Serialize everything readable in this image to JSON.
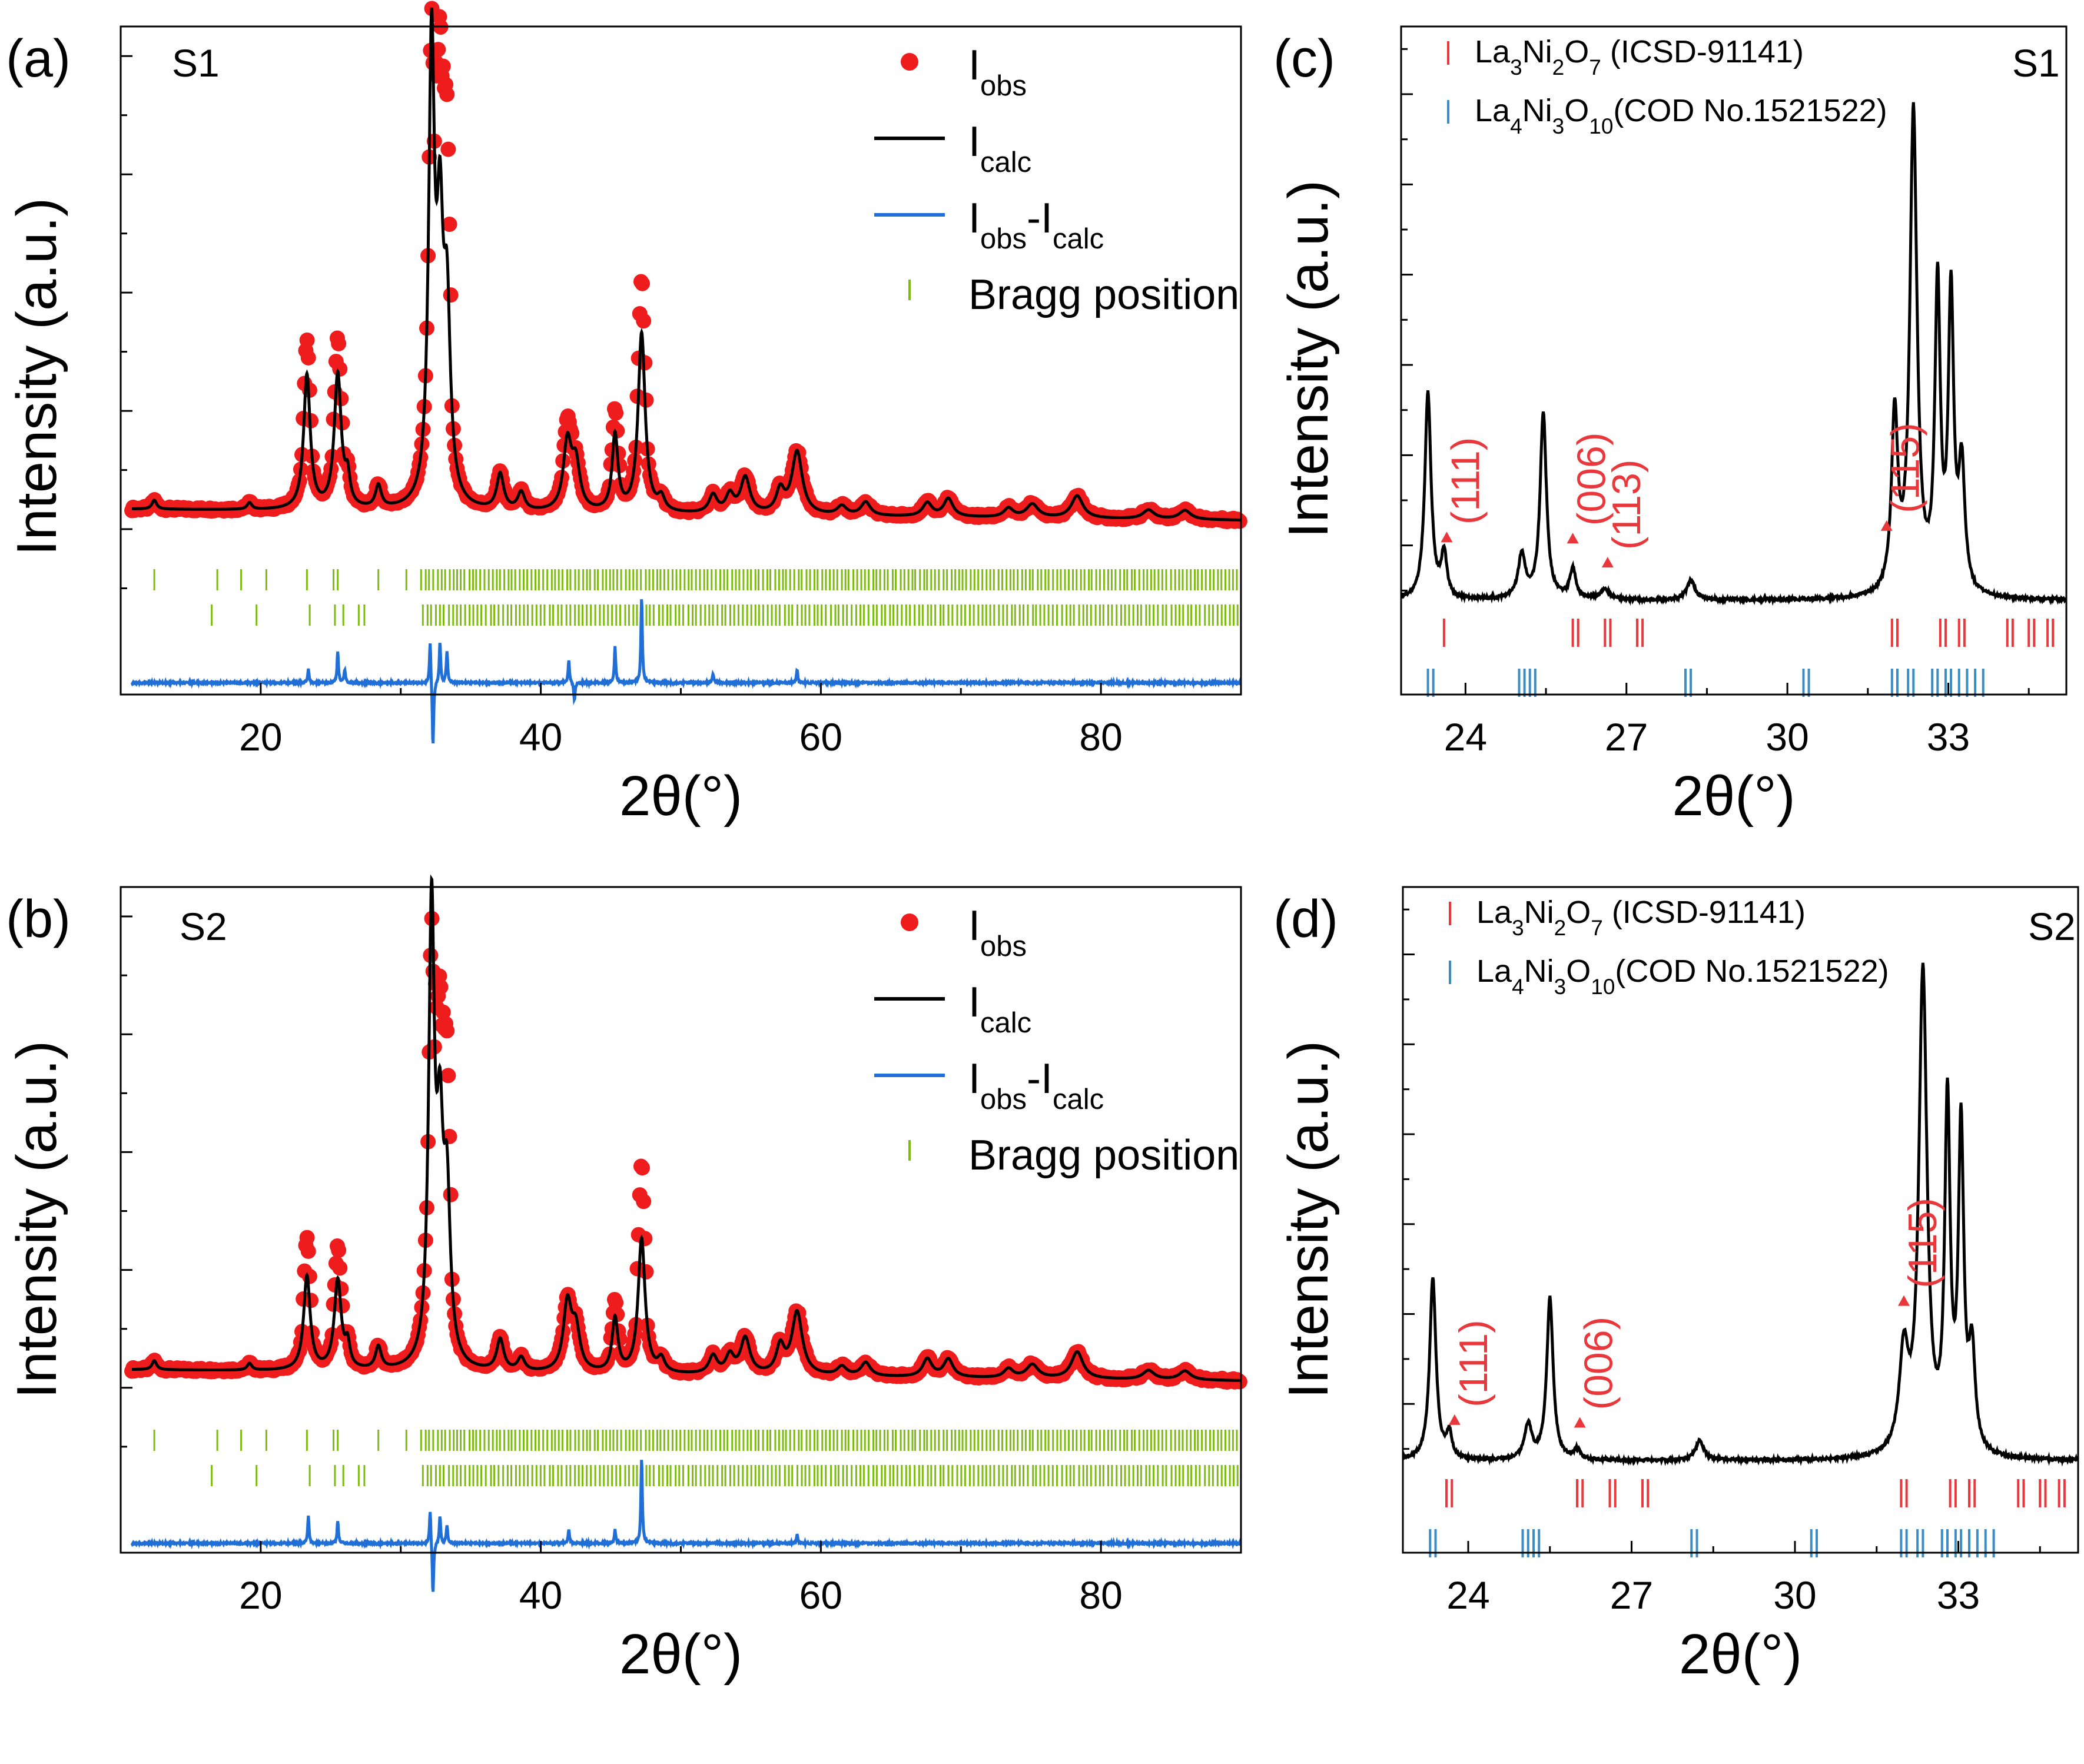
{
  "colors": {
    "observed": "#ee1c1c",
    "calculated": "#000000",
    "difference": "#1f6fd6",
    "bragg": "#7dbb12",
    "phase327": "#e8383c",
    "phase4310": "#3c8dc4",
    "axis": "#000000"
  },
  "chart_data": [
    {
      "id": "a",
      "panel_label": "(a)",
      "sample": "S1",
      "type": "scatter",
      "title": "",
      "xlabel": "2θ(°)",
      "ylabel": "Intensity (a.u.)",
      "xlim": [
        10,
        90
      ],
      "xticks": [
        20,
        40,
        60,
        80
      ],
      "xtick_labels": [
        "20",
        "40",
        "60",
        "80"
      ],
      "y_units": "a.u. (no numeric tick labels)",
      "legend": [
        {
          "label": "Iobs",
          "base": "I",
          "sub": "obs"
        },
        {
          "label": "Icalc",
          "base": "I",
          "sub": "calc"
        },
        {
          "label": "Iobs-Icalc",
          "base": "I",
          "sub": "obs",
          "mid": "-I",
          "sub2": "calc"
        },
        {
          "label": "Bragg position",
          "base": "Bragg position"
        }
      ],
      "legend_position": "top-right",
      "background": 0.1,
      "peaks": [
        [
          12.4,
          0.02,
          0.2
        ],
        [
          19.2,
          0.015,
          0.2
        ],
        [
          23.3,
          0.3,
          0.28
        ],
        [
          25.5,
          0.3,
          0.3
        ],
        [
          26.2,
          0.06,
          0.2
        ],
        [
          28.4,
          0.05,
          0.25
        ],
        [
          32.2,
          1.0,
          0.25
        ],
        [
          32.8,
          0.55,
          0.28
        ],
        [
          33.3,
          0.4,
          0.28
        ],
        [
          37.1,
          0.08,
          0.3
        ],
        [
          38.6,
          0.04,
          0.3
        ],
        [
          41.9,
          0.15,
          0.35
        ],
        [
          42.5,
          0.1,
          0.35
        ],
        [
          45.3,
          0.17,
          0.25
        ],
        [
          47.2,
          0.4,
          0.3
        ],
        [
          48.6,
          0.03,
          0.3
        ],
        [
          52.3,
          0.04,
          0.35
        ],
        [
          53.5,
          0.04,
          0.35
        ],
        [
          54.6,
          0.08,
          0.4
        ],
        [
          57.1,
          0.05,
          0.35
        ],
        [
          58.3,
          0.14,
          0.45
        ],
        [
          61.5,
          0.02,
          0.4
        ],
        [
          63.2,
          0.03,
          0.4
        ],
        [
          67.6,
          0.03,
          0.4
        ],
        [
          69.1,
          0.04,
          0.4
        ],
        [
          73.4,
          0.02,
          0.4
        ],
        [
          75.1,
          0.03,
          0.5
        ],
        [
          78.3,
          0.05,
          0.5
        ],
        [
          83.4,
          0.02,
          0.5
        ],
        [
          86.0,
          0.02,
          0.5
        ]
      ],
      "obs_scale": [
        [
          23.3,
          1.25
        ],
        [
          25.5,
          1.25
        ],
        [
          32.2,
          1.0
        ],
        [
          32.8,
          1.4
        ],
        [
          33.3,
          1.6
        ],
        [
          41.9,
          1.2
        ],
        [
          45.3,
          1.3
        ],
        [
          47.2,
          1.3
        ]
      ],
      "obs_step": 0.09,
      "bragg_rows": [
        {
          "ticks": [
            12.4,
            16.9,
            18.6,
            20.4,
            23.3,
            25.2,
            25.5,
            28.4,
            30.4
          ],
          "dense_from": 31.5,
          "dense_to": 90,
          "dense_step": 0.28
        },
        {
          "ticks": [
            16.5,
            19.7,
            23.5,
            25.3,
            25.9,
            27.0,
            27.4
          ],
          "dense_from": 31.6,
          "dense_to": 90,
          "dense_step": 0.3
        }
      ],
      "difference_spikes": [
        [
          23.4,
          0.03
        ],
        [
          25.5,
          0.07
        ],
        [
          26.0,
          0.03
        ],
        [
          32.1,
          0.1
        ],
        [
          32.3,
          -0.15
        ],
        [
          32.8,
          0.09
        ],
        [
          33.3,
          0.07
        ],
        [
          42.0,
          0.05
        ],
        [
          42.4,
          -0.04
        ],
        [
          45.3,
          0.08
        ],
        [
          47.2,
          0.19
        ],
        [
          52.3,
          0.02
        ],
        [
          58.3,
          0.03
        ]
      ]
    },
    {
      "id": "b",
      "panel_label": "(b)",
      "sample": "S2",
      "type": "scatter",
      "title": "",
      "xlabel": "2θ(°)",
      "ylabel": "Intensity (a.u.)",
      "xlim": [
        10,
        90
      ],
      "xticks": [
        20,
        40,
        60,
        80
      ],
      "xtick_labels": [
        "20",
        "40",
        "60",
        "80"
      ],
      "y_units": "a.u. (no numeric tick labels)",
      "legend": [
        {
          "label": "Iobs",
          "base": "I",
          "sub": "obs"
        },
        {
          "label": "Icalc",
          "base": "I",
          "sub": "calc"
        },
        {
          "label": "Iobs-Icalc",
          "base": "I",
          "sub": "obs",
          "mid": "-I",
          "sub2": "calc"
        },
        {
          "label": "Bragg position",
          "base": "Bragg position"
        }
      ],
      "legend_position": "top-right",
      "background": 0.1,
      "peaks": [
        [
          12.4,
          0.02,
          0.2
        ],
        [
          19.2,
          0.015,
          0.2
        ],
        [
          23.3,
          0.21,
          0.28
        ],
        [
          25.5,
          0.2,
          0.3
        ],
        [
          26.2,
          0.05,
          0.2
        ],
        [
          28.4,
          0.05,
          0.25
        ],
        [
          32.2,
          1.0,
          0.25
        ],
        [
          32.8,
          0.45,
          0.28
        ],
        [
          33.3,
          0.35,
          0.28
        ],
        [
          37.1,
          0.07,
          0.3
        ],
        [
          38.6,
          0.03,
          0.3
        ],
        [
          41.9,
          0.15,
          0.35
        ],
        [
          42.5,
          0.09,
          0.35
        ],
        [
          45.3,
          0.12,
          0.25
        ],
        [
          47.2,
          0.3,
          0.3
        ],
        [
          48.6,
          0.03,
          0.3
        ],
        [
          52.3,
          0.04,
          0.35
        ],
        [
          53.5,
          0.04,
          0.35
        ],
        [
          54.6,
          0.08,
          0.4
        ],
        [
          57.1,
          0.06,
          0.35
        ],
        [
          58.3,
          0.14,
          0.45
        ],
        [
          61.5,
          0.02,
          0.4
        ],
        [
          63.2,
          0.03,
          0.4
        ],
        [
          67.6,
          0.04,
          0.4
        ],
        [
          69.1,
          0.04,
          0.4
        ],
        [
          73.4,
          0.02,
          0.4
        ],
        [
          75.1,
          0.03,
          0.5
        ],
        [
          78.3,
          0.06,
          0.5
        ],
        [
          83.4,
          0.02,
          0.5
        ],
        [
          86.0,
          0.02,
          0.5
        ]
      ],
      "obs_scale": [
        [
          23.3,
          1.4
        ],
        [
          25.5,
          1.35
        ],
        [
          32.2,
          0.92
        ],
        [
          32.8,
          1.3
        ],
        [
          33.3,
          1.5
        ],
        [
          45.3,
          1.3
        ],
        [
          47.2,
          1.55
        ]
      ],
      "obs_step": 0.09,
      "bragg_rows": [
        {
          "ticks": [
            12.4,
            16.9,
            18.6,
            20.4,
            23.3,
            25.2,
            25.5,
            28.4,
            30.4
          ],
          "dense_from": 31.5,
          "dense_to": 90,
          "dense_step": 0.28
        },
        {
          "ticks": [
            16.5,
            19.7,
            23.5,
            25.3,
            25.9,
            27.0,
            27.4
          ],
          "dense_from": 31.6,
          "dense_to": 90,
          "dense_step": 0.3
        }
      ],
      "difference_spikes": [
        [
          23.4,
          0.06
        ],
        [
          25.5,
          0.05
        ],
        [
          32.1,
          0.08
        ],
        [
          32.3,
          -0.12
        ],
        [
          32.8,
          0.06
        ],
        [
          33.3,
          0.04
        ],
        [
          42.0,
          0.03
        ],
        [
          45.3,
          0.03
        ],
        [
          47.2,
          0.19
        ],
        [
          58.3,
          0.02
        ]
      ]
    },
    {
      "id": "c",
      "panel_label": "(c)",
      "sample": "S1",
      "type": "line",
      "title": "",
      "xlabel": "2θ(°)",
      "ylabel": "Intensity (a.u.)",
      "xlim": [
        22.8,
        35.2
      ],
      "xticks": [
        24,
        27,
        30,
        33
      ],
      "xtick_labels": [
        "24",
        "27",
        "30",
        "33"
      ],
      "y_units": "a.u. (no numeric tick labels)",
      "legend": [
        {
          "label": "La3Ni2O7 (ICSD-91141)",
          "parts": [
            [
              "La",
              ""
            ],
            [
              "3",
              "sub"
            ],
            [
              "Ni",
              ""
            ],
            [
              "2",
              "sub"
            ],
            [
              "O",
              ""
            ],
            [
              "7",
              "sub"
            ],
            [
              " (ICSD-91141)",
              ""
            ]
          ]
        },
        {
          "label": "La4Ni3O10(COD No.1521522)",
          "parts": [
            [
              "La",
              ""
            ],
            [
              "4",
              "sub"
            ],
            [
              "Ni",
              ""
            ],
            [
              "3",
              "sub"
            ],
            [
              "O",
              ""
            ],
            [
              "10",
              "sub"
            ],
            [
              "(COD No.1521522)",
              ""
            ]
          ]
        }
      ],
      "legend_position": "top-left",
      "background": 0.05,
      "peaks": [
        [
          23.3,
          0.42,
          0.07
        ],
        [
          23.6,
          0.09,
          0.06
        ],
        [
          25.05,
          0.09,
          0.08
        ],
        [
          25.45,
          0.38,
          0.07
        ],
        [
          26.0,
          0.06,
          0.07
        ],
        [
          26.6,
          0.02,
          0.1
        ],
        [
          28.2,
          0.04,
          0.09
        ],
        [
          32.0,
          0.36,
          0.07
        ],
        [
          32.35,
          0.98,
          0.08
        ],
        [
          32.8,
          0.62,
          0.06
        ],
        [
          33.05,
          0.6,
          0.06
        ],
        [
          33.25,
          0.25,
          0.07
        ]
      ],
      "annotations": [
        {
          "text": "(111)",
          "x": 23.65
        },
        {
          "text": "(006)",
          "x": 26.0
        },
        {
          "text": "(113)",
          "x": 26.65
        },
        {
          "text": "(115)",
          "x": 31.85
        }
      ],
      "phase327_ticks": [
        23.6,
        26.0,
        26.1,
        26.6,
        26.7,
        27.2,
        27.3,
        31.95,
        32.05,
        32.85,
        32.95,
        33.2,
        33.3,
        34.1,
        34.2,
        34.5,
        34.6,
        34.85,
        34.95
      ],
      "phase4310_ticks": [
        23.3,
        23.4,
        25.0,
        25.1,
        25.2,
        25.3,
        28.1,
        28.2,
        30.3,
        30.4,
        31.95,
        32.05,
        32.25,
        32.35,
        32.7,
        32.8,
        32.95,
        33.05,
        33.2,
        33.35,
        33.5,
        33.65
      ],
      "series_names": [
        "La3Ni2O7 (ICSD-91141)",
        "La4Ni3O10(COD No.1521522)"
      ]
    },
    {
      "id": "d",
      "panel_label": "(d)",
      "sample": "S2",
      "type": "line",
      "title": "",
      "xlabel": "2θ(°)",
      "ylabel": "Intensity (a.u.)",
      "xlim": [
        22.8,
        35.2
      ],
      "xticks": [
        24,
        27,
        30,
        33
      ],
      "xtick_labels": [
        "24",
        "27",
        "30",
        "33"
      ],
      "y_units": "a.u. (no numeric tick labels)",
      "legend": [
        {
          "label": "La3Ni2O7 (ICSD-91141)",
          "parts": [
            [
              "La",
              ""
            ],
            [
              "3",
              "sub"
            ],
            [
              "Ni",
              ""
            ],
            [
              "2",
              "sub"
            ],
            [
              "O",
              ""
            ],
            [
              "7",
              "sub"
            ],
            [
              " (ICSD-91141)",
              ""
            ]
          ]
        },
        {
          "label": "La4Ni3O10(COD No.1521522)",
          "parts": [
            [
              "La",
              ""
            ],
            [
              "4",
              "sub"
            ],
            [
              "Ni",
              ""
            ],
            [
              "3",
              "sub"
            ],
            [
              "O",
              ""
            ],
            [
              "10",
              "sub"
            ],
            [
              "(COD No.1521522)",
              ""
            ]
          ]
        }
      ],
      "legend_position": "top-left",
      "background": 0.05,
      "peaks": [
        [
          23.35,
          0.37,
          0.07
        ],
        [
          23.65,
          0.05,
          0.06
        ],
        [
          25.1,
          0.07,
          0.08
        ],
        [
          25.5,
          0.33,
          0.07
        ],
        [
          26.0,
          0.02,
          0.07
        ],
        [
          28.25,
          0.04,
          0.09
        ],
        [
          32.0,
          0.2,
          0.1
        ],
        [
          32.35,
          0.98,
          0.09
        ],
        [
          32.8,
          0.7,
          0.06
        ],
        [
          33.05,
          0.65,
          0.06
        ],
        [
          33.25,
          0.2,
          0.07
        ]
      ],
      "annotations": [
        {
          "text": "(111)",
          "x": 23.75
        },
        {
          "text": "(006)",
          "x": 26.05
        },
        {
          "text": "(115)",
          "x": 32.0
        }
      ],
      "phase327_ticks": [
        23.6,
        23.7,
        26.0,
        26.1,
        26.6,
        26.7,
        27.2,
        27.3,
        31.95,
        32.05,
        32.85,
        32.95,
        33.2,
        33.3,
        34.1,
        34.2,
        34.5,
        34.6,
        34.85,
        34.95
      ],
      "phase4310_ticks": [
        23.3,
        23.4,
        25.0,
        25.1,
        25.2,
        25.3,
        28.1,
        28.2,
        30.3,
        30.4,
        31.95,
        32.05,
        32.25,
        32.35,
        32.7,
        32.8,
        32.95,
        33.05,
        33.2,
        33.35,
        33.5,
        33.65
      ],
      "series_names": [
        "La3Ni2O7 (ICSD-91141)",
        "La4Ni3O10(COD No.1521522)"
      ]
    }
  ]
}
